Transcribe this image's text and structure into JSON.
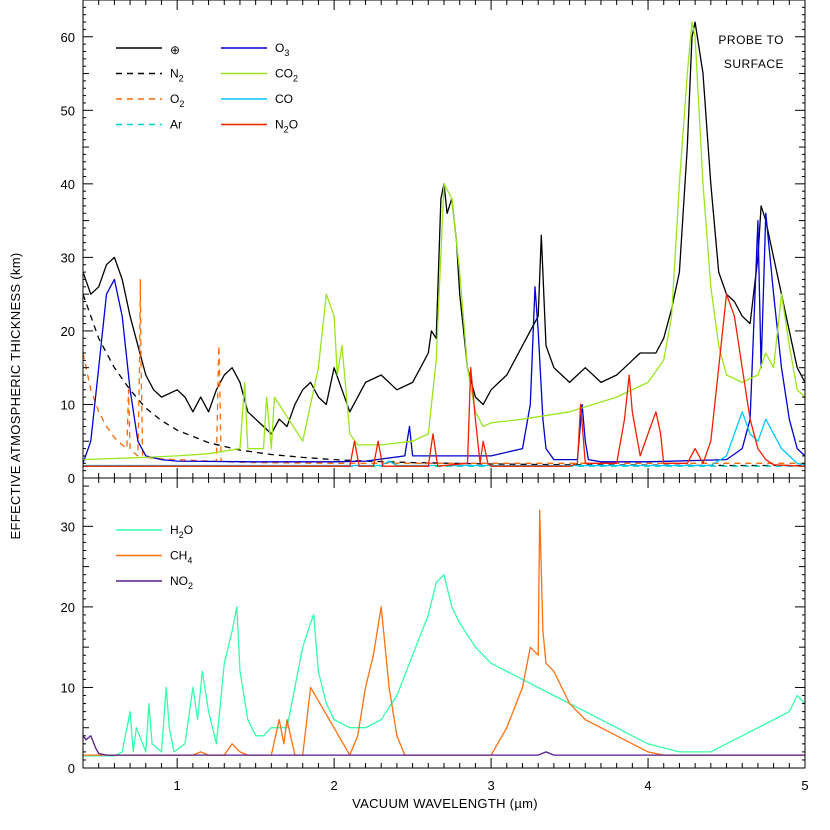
{
  "chart_data": [
    {
      "type": "line",
      "panel": "top",
      "annotation": [
        "PROBE TO",
        "SURFACE"
      ],
      "xlim": [
        0.4,
        5.0
      ],
      "ylim": [
        0,
        65
      ],
      "y_ticks": [
        0,
        10,
        20,
        30,
        40,
        50,
        60
      ],
      "x_tick_labels": [],
      "series": [
        {
          "name": "⊕",
          "label_main": "⊕",
          "label_sub": "",
          "color": "#000000",
          "dash": "solid",
          "x": [
            0.4,
            0.45,
            0.5,
            0.55,
            0.6,
            0.65,
            0.7,
            0.75,
            0.8,
            0.85,
            0.9,
            1.0,
            1.05,
            1.1,
            1.15,
            1.2,
            1.25,
            1.3,
            1.35,
            1.4,
            1.45,
            1.5,
            1.55,
            1.6,
            1.65,
            1.7,
            1.75,
            1.8,
            1.85,
            1.9,
            1.95,
            2.0,
            2.05,
            2.1,
            2.15,
            2.2,
            2.3,
            2.4,
            2.5,
            2.55,
            2.6,
            2.62,
            2.65,
            2.68,
            2.7,
            2.72,
            2.75,
            2.78,
            2.8,
            2.85,
            2.9,
            2.95,
            3.0,
            3.05,
            3.1,
            3.15,
            3.2,
            3.25,
            3.3,
            3.32,
            3.35,
            3.4,
            3.45,
            3.5,
            3.55,
            3.6,
            3.7,
            3.8,
            3.85,
            3.9,
            3.95,
            4.0,
            4.05,
            4.1,
            4.15,
            4.2,
            4.25,
            4.28,
            4.3,
            4.35,
            4.4,
            4.45,
            4.5,
            4.55,
            4.6,
            4.65,
            4.7,
            4.72,
            4.75,
            4.8,
            4.85,
            4.9,
            4.95,
            5.0
          ],
          "y": [
            28,
            25,
            26,
            29,
            30,
            27,
            22,
            18,
            14,
            12,
            11,
            12,
            11,
            9,
            11,
            9,
            12,
            14,
            15,
            13,
            9,
            8,
            7,
            6,
            8,
            7,
            10,
            12,
            13,
            11,
            10,
            15,
            12,
            9,
            11,
            13,
            14,
            12,
            13,
            15,
            17,
            20,
            19,
            38,
            40,
            36,
            38,
            32,
            25,
            15,
            11,
            10,
            12,
            13,
            14,
            16,
            18,
            20,
            22,
            33,
            18,
            15,
            14,
            13,
            14,
            15,
            13,
            14,
            15,
            16,
            17,
            17,
            17,
            19,
            23,
            28,
            45,
            60,
            62,
            55,
            40,
            28,
            25,
            24,
            22,
            21,
            30,
            37,
            35,
            30,
            25,
            20,
            15,
            13
          ]
        },
        {
          "name": "N2",
          "label_main": "N",
          "label_sub": "2",
          "color": "#000000",
          "dash": "6,5",
          "x": [
            0.4,
            0.5,
            0.6,
            0.7,
            0.8,
            0.9,
            1.0,
            1.2,
            1.4,
            1.6,
            1.8,
            2.0,
            2.2,
            2.5,
            3.0,
            3.5,
            4.0,
            4.5,
            5.0
          ],
          "y": [
            25,
            19,
            15,
            12,
            9.5,
            7.8,
            6.5,
            4.8,
            3.8,
            3.2,
            2.8,
            2.5,
            2.3,
            2.1,
            1.9,
            1.8,
            1.75,
            1.7,
            1.7
          ]
        },
        {
          "name": "O2",
          "label_main": "O",
          "label_sub": "2",
          "color": "#ff6a00",
          "dash": "6,5",
          "x": [
            0.4,
            0.45,
            0.5,
            0.55,
            0.6,
            0.65,
            0.68,
            0.69,
            0.7,
            0.72,
            0.75,
            0.76,
            0.765,
            0.77,
            0.78,
            0.8,
            0.9,
            1.0,
            1.1,
            1.2,
            1.25,
            1.265,
            1.27,
            1.28,
            1.3,
            1.5,
            2.0,
            3.0,
            4.0,
            5.0
          ],
          "y": [
            17,
            12,
            9,
            7,
            5.5,
            4.5,
            4,
            12,
            4,
            3.5,
            3,
            15,
            27,
            15,
            3,
            2.8,
            2.6,
            2.5,
            2.4,
            2.3,
            2.3,
            18,
            14,
            2.3,
            2.2,
            2.1,
            2.0,
            2.0,
            2.0,
            2.0
          ]
        },
        {
          "name": "Ar",
          "label_main": "Ar",
          "label_sub": "",
          "color": "#00d0d0",
          "dash": "6,5",
          "x": [
            0.4,
            5.0
          ],
          "y": [
            1.6,
            1.6
          ]
        },
        {
          "name": "O3",
          "label_main": "O",
          "label_sub": "3",
          "color": "#0000d0",
          "dash": "solid",
          "x": [
            0.4,
            0.45,
            0.5,
            0.55,
            0.6,
            0.65,
            0.7,
            0.75,
            0.8,
            0.9,
            1.0,
            1.5,
            2.0,
            2.2,
            2.45,
            2.48,
            2.5,
            2.6,
            2.7,
            3.0,
            3.2,
            3.25,
            3.28,
            3.3,
            3.33,
            3.35,
            3.4,
            3.55,
            3.58,
            3.6,
            3.62,
            3.7,
            4.0,
            4.5,
            4.6,
            4.65,
            4.7,
            4.72,
            4.75,
            4.8,
            4.85,
            4.9,
            4.95,
            5.0
          ],
          "y": [
            2,
            5,
            15,
            25,
            27,
            22,
            12,
            5,
            3,
            2.5,
            2.3,
            2.2,
            2.2,
            2.3,
            3,
            7,
            3,
            3,
            3,
            3,
            4,
            10,
            26,
            20,
            8,
            4,
            2.5,
            2.5,
            10,
            5,
            2.5,
            2.2,
            2.2,
            2.5,
            4,
            8,
            35,
            15,
            36,
            25,
            15,
            8,
            4,
            3
          ]
        },
        {
          "name": "CO2",
          "label_main": "CO",
          "label_sub": "2",
          "color": "#99e61a",
          "dash": "solid",
          "x": [
            0.4,
            0.8,
            1.0,
            1.2,
            1.4,
            1.43,
            1.45,
            1.55,
            1.57,
            1.6,
            1.62,
            1.8,
            1.9,
            1.95,
            2.0,
            2.02,
            2.05,
            2.1,
            2.15,
            2.3,
            2.5,
            2.6,
            2.65,
            2.7,
            2.75,
            2.8,
            2.85,
            2.9,
            2.95,
            3.0,
            3.2,
            3.5,
            3.8,
            4.0,
            4.1,
            4.15,
            4.2,
            4.25,
            4.28,
            4.3,
            4.35,
            4.4,
            4.45,
            4.5,
            4.6,
            4.7,
            4.75,
            4.8,
            4.85,
            4.9,
            4.95,
            5.0
          ],
          "y": [
            2.5,
            2.8,
            3,
            3.3,
            4,
            13,
            4,
            4,
            11,
            4,
            11,
            5,
            15,
            25,
            22,
            14,
            18,
            6,
            4.5,
            4.5,
            5,
            6,
            16,
            40,
            38,
            28,
            15,
            9,
            7,
            7.5,
            8,
            9,
            11,
            13,
            16,
            22,
            40,
            55,
            62,
            60,
            40,
            26,
            18,
            14,
            13,
            14,
            17,
            15,
            25,
            18,
            12,
            11
          ]
        },
        {
          "name": "CO",
          "label_main": "CO",
          "label_sub": "",
          "color": "#00c8ff",
          "dash": "solid",
          "x": [
            0.4,
            2.3,
            2.35,
            2.4,
            4.4,
            4.5,
            4.55,
            4.6,
            4.65,
            4.7,
            4.75,
            4.8,
            4.85,
            4.9,
            4.95,
            5.0
          ],
          "y": [
            1.7,
            1.7,
            2.3,
            1.7,
            1.7,
            3,
            6,
            9,
            6,
            5,
            8,
            6,
            4,
            3,
            2,
            1.8
          ]
        },
        {
          "name": "N2O",
          "label_main": "N",
          "label_sub": "2",
          "label_tail": "O",
          "color": "#ee2000",
          "dash": "solid",
          "x": [
            0.4,
            2.1,
            2.13,
            2.16,
            2.25,
            2.28,
            2.31,
            2.6,
            2.63,
            2.66,
            2.85,
            2.87,
            2.9,
            2.93,
            2.95,
            2.98,
            3.0,
            3.5,
            3.55,
            3.57,
            3.6,
            3.8,
            3.85,
            3.88,
            3.9,
            3.95,
            4.0,
            4.05,
            4.08,
            4.1,
            4.15,
            4.25,
            4.3,
            4.35,
            4.4,
            4.45,
            4.5,
            4.55,
            4.6,
            4.65,
            4.7,
            4.75,
            4.8,
            5.0
          ],
          "y": [
            1.6,
            1.6,
            5,
            1.6,
            1.6,
            5,
            1.6,
            1.6,
            6,
            1.6,
            2,
            15,
            8,
            2,
            5,
            2,
            1.6,
            1.6,
            2,
            10,
            2,
            2,
            8,
            14,
            9,
            3,
            6,
            9,
            6,
            2,
            2,
            2,
            4,
            2,
            5,
            15,
            25,
            22,
            15,
            8,
            4,
            2.5,
            1.8,
            1.6
          ]
        }
      ]
    },
    {
      "type": "line",
      "panel": "bottom",
      "xlim": [
        0.4,
        5.0
      ],
      "ylim": [
        0,
        36
      ],
      "y_ticks": [
        0,
        10,
        20,
        30
      ],
      "x_tick_labels": [
        "1",
        "2",
        "3",
        "4",
        "5"
      ],
      "xlabel": "VACUUM WAVELENGTH (µm)",
      "shared_ylabel": "EFFECTIVE ATMOSPHERIC THICKNESS (km)",
      "series": [
        {
          "name": "H2O",
          "label_main": "H",
          "label_sub": "2",
          "label_tail": "O",
          "color": "#33ffaa",
          "dash": "solid",
          "x": [
            0.4,
            0.6,
            0.65,
            0.7,
            0.72,
            0.74,
            0.8,
            0.82,
            0.84,
            0.9,
            0.93,
            0.95,
            0.98,
            1.05,
            1.1,
            1.13,
            1.16,
            1.2,
            1.25,
            1.3,
            1.35,
            1.38,
            1.4,
            1.45,
            1.5,
            1.55,
            1.6,
            1.7,
            1.8,
            1.85,
            1.87,
            1.9,
            1.95,
            2.0,
            2.1,
            2.2,
            2.3,
            2.4,
            2.5,
            2.6,
            2.65,
            2.7,
            2.75,
            2.8,
            2.9,
            3.0,
            3.2,
            3.4,
            3.5,
            3.6,
            3.7,
            3.8,
            3.9,
            4.0,
            4.1,
            4.2,
            4.3,
            4.4,
            4.5,
            4.6,
            4.7,
            4.8,
            4.9,
            4.95,
            5.0
          ],
          "y": [
            1.5,
            1.5,
            2,
            7,
            2,
            5,
            2,
            8,
            3,
            2,
            10,
            5,
            2,
            3,
            10,
            6,
            12,
            7,
            3,
            13,
            17,
            20,
            12,
            6,
            4,
            4,
            5,
            5,
            15,
            18,
            19,
            12,
            8,
            6,
            5,
            5,
            6,
            9,
            14,
            19,
            23,
            24,
            20,
            18,
            15,
            13,
            11,
            9,
            8,
            7,
            6,
            5,
            4,
            3,
            2.5,
            2,
            2,
            2,
            3,
            4,
            5,
            6,
            7,
            9,
            8
          ]
        },
        {
          "name": "CH4",
          "label_main": "CH",
          "label_sub": "4",
          "color": "#ff7010",
          "dash": "solid",
          "x": [
            0.4,
            1.1,
            1.15,
            1.2,
            1.3,
            1.35,
            1.4,
            1.45,
            1.6,
            1.65,
            1.68,
            1.7,
            1.75,
            1.8,
            1.85,
            2.1,
            2.15,
            2.2,
            2.25,
            2.3,
            2.35,
            2.4,
            2.45,
            2.5,
            2.6,
            3.0,
            3.1,
            3.2,
            3.25,
            3.3,
            3.31,
            3.33,
            3.35,
            3.4,
            3.45,
            3.5,
            3.55,
            3.6,
            3.7,
            3.8,
            3.9,
            4.0,
            4.1,
            5.0
          ],
          "y": [
            1.6,
            1.6,
            2,
            1.6,
            1.6,
            3,
            2,
            1.6,
            1.6,
            6,
            3,
            6,
            1.6,
            1.6,
            10,
            1.6,
            4,
            10,
            14,
            20,
            10,
            4,
            1.6,
            1.6,
            1.6,
            1.6,
            5,
            10,
            15,
            14,
            32,
            17,
            13,
            12,
            10,
            8,
            7,
            6,
            5,
            4,
            3,
            2,
            1.6,
            1.6
          ]
        },
        {
          "name": "NO2",
          "label_main": "NO",
          "label_sub": "2",
          "color": "#5a1a8c",
          "dash": "solid",
          "x": [
            0.4,
            0.42,
            0.45,
            0.48,
            0.5,
            0.55,
            1.0,
            2.0,
            3.3,
            3.35,
            3.4,
            4.0,
            5.0
          ],
          "y": [
            4,
            3.5,
            4,
            2.5,
            1.8,
            1.6,
            1.6,
            1.6,
            1.6,
            2,
            1.6,
            1.6,
            1.6
          ]
        }
      ]
    }
  ]
}
